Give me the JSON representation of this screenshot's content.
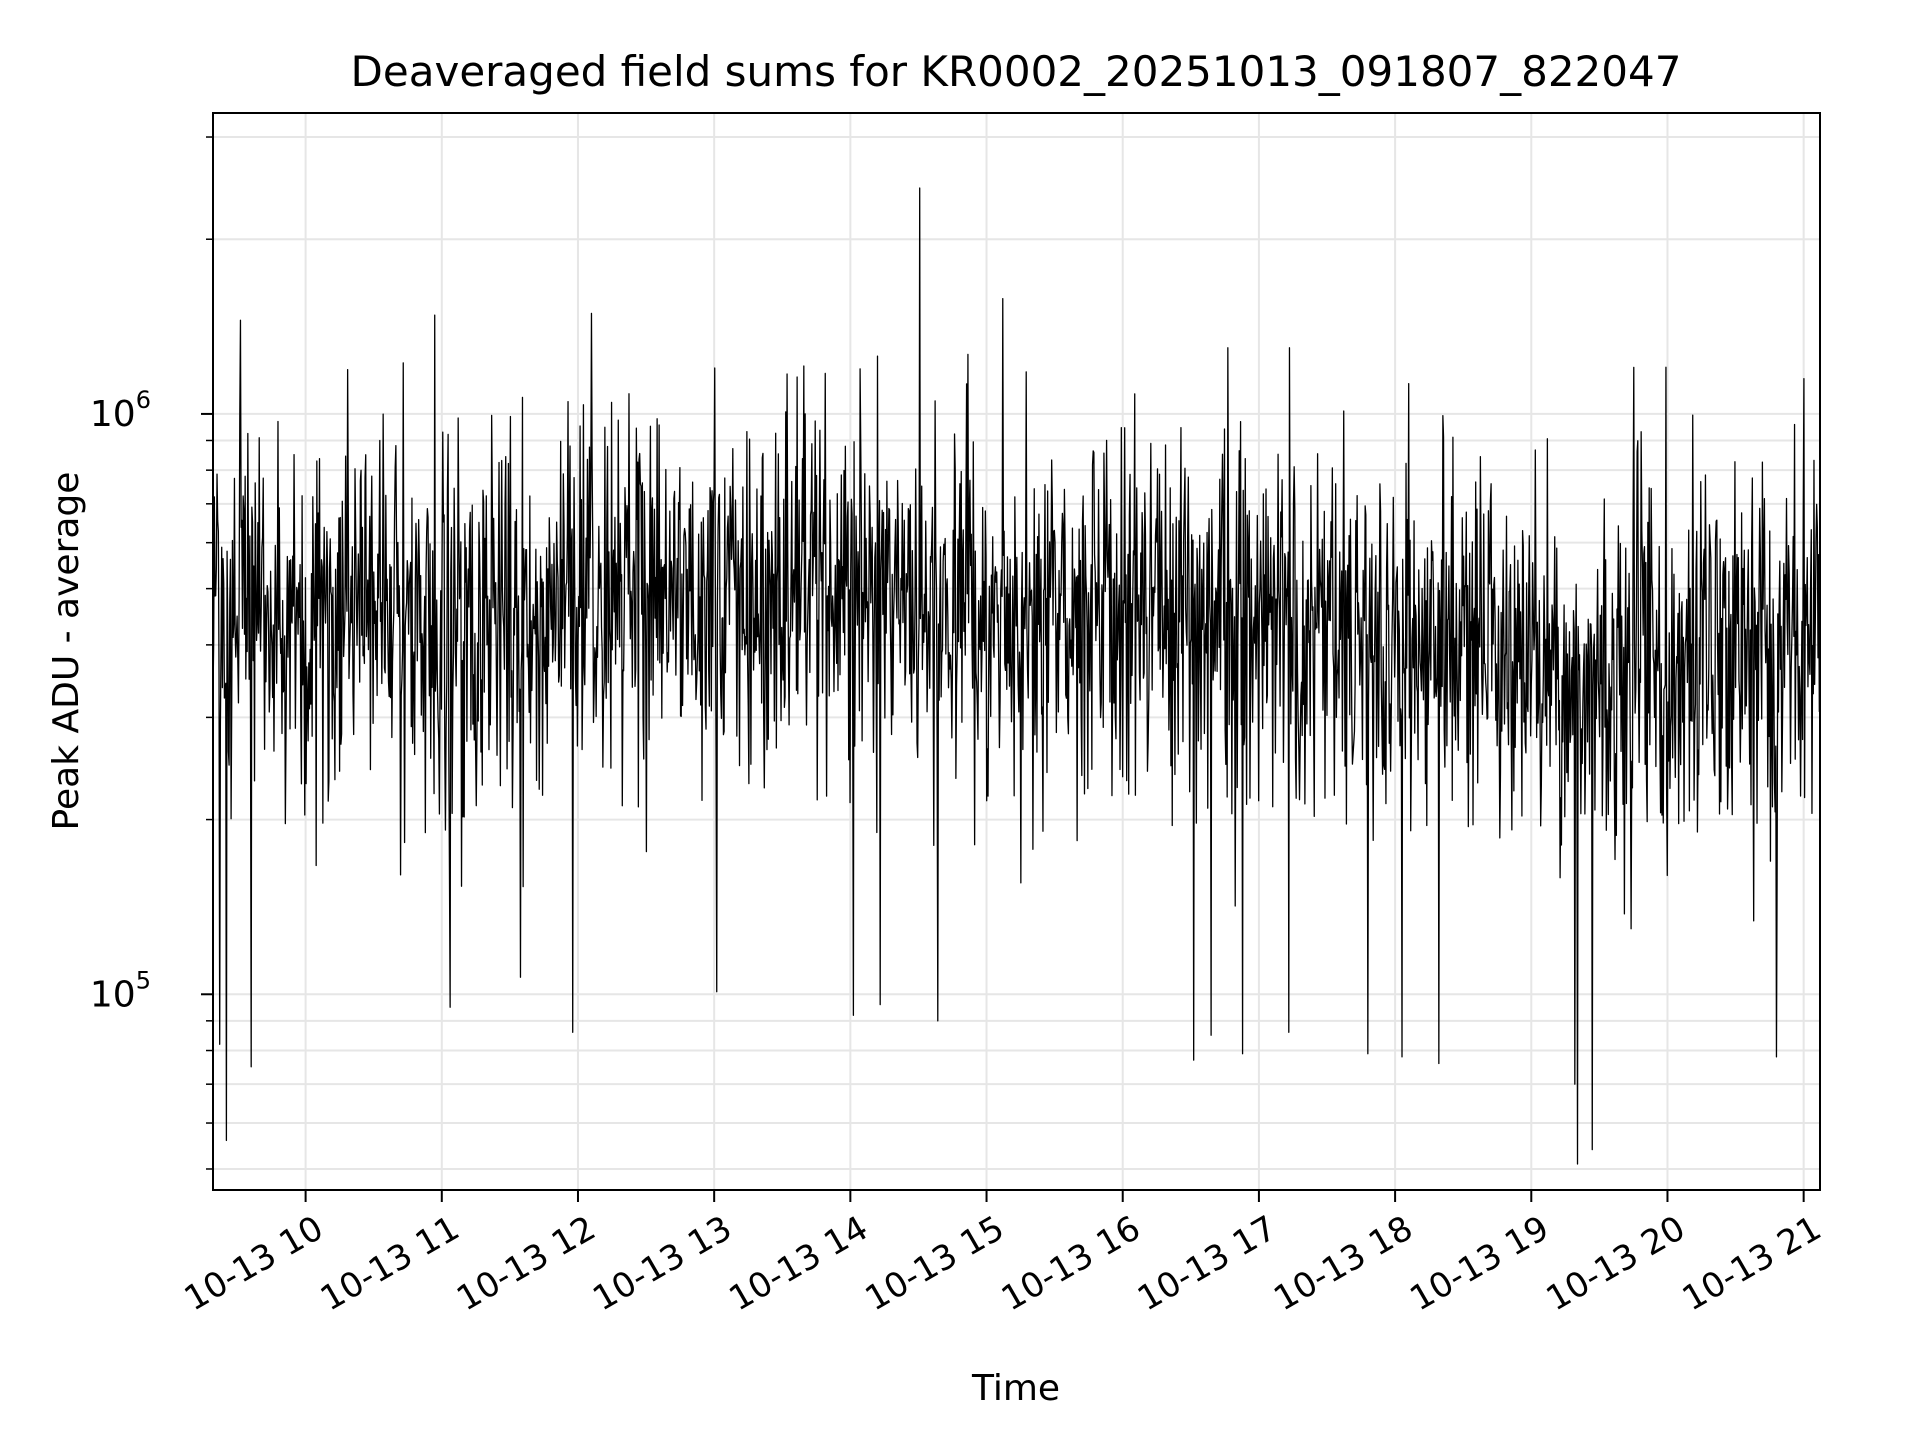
{
  "chart_data": {
    "type": "line",
    "title": "Deaveraged field sums for KR0002_20251013_091807_822047",
    "xlabel": "Time",
    "ylabel": "Peak ADU - average",
    "yscale": "log",
    "ylim": [
      46000,
      3300000
    ],
    "xlim_hours": [
      9.32,
      21.12
    ],
    "grid": true,
    "line_color": "#000000",
    "grid_color": "#e6e6e6",
    "x_ticks": [
      {
        "hour": 10,
        "label": "10-13 10"
      },
      {
        "hour": 11,
        "label": "10-13 11"
      },
      {
        "hour": 12,
        "label": "10-13 12"
      },
      {
        "hour": 13,
        "label": "10-13 13"
      },
      {
        "hour": 14,
        "label": "10-13 14"
      },
      {
        "hour": 15,
        "label": "10-13 15"
      },
      {
        "hour": 16,
        "label": "10-13 16"
      },
      {
        "hour": 17,
        "label": "10-13 17"
      },
      {
        "hour": 18,
        "label": "10-13 18"
      },
      {
        "hour": 19,
        "label": "10-13 19"
      },
      {
        "hour": 20,
        "label": "10-13 20"
      },
      {
        "hour": 21,
        "label": "10-13 21"
      }
    ],
    "y_major_ticks": [
      {
        "value": 100000,
        "base": "10",
        "exp": "5"
      },
      {
        "value": 1000000,
        "base": "10",
        "exp": "6"
      }
    ],
    "y_minor_ticks": [
      50000,
      60000,
      70000,
      80000,
      90000,
      200000,
      300000,
      400000,
      500000,
      600000,
      700000,
      800000,
      900000,
      2000000,
      3000000
    ],
    "series": [
      {
        "name": "deaveraged field sums",
        "baseline_profile": [
          {
            "hour": 9.32,
            "median": 450000
          },
          {
            "hour": 10.5,
            "median": 470000
          },
          {
            "hour": 11.2,
            "median": 420000
          },
          {
            "hour": 12.0,
            "median": 490000
          },
          {
            "hour": 13.5,
            "median": 500000
          },
          {
            "hour": 15.0,
            "median": 470000
          },
          {
            "hour": 16.5,
            "median": 450000
          },
          {
            "hour": 18.0,
            "median": 410000
          },
          {
            "hour": 19.5,
            "median": 360000
          },
          {
            "hour": 20.8,
            "median": 380000
          },
          {
            "hour": 21.12,
            "median": 480000
          }
        ],
        "notable_points": [
          {
            "hour": 9.42,
            "value": 56000
          },
          {
            "hour": 9.37,
            "value": 82000
          },
          {
            "hour": 9.6,
            "value": 75000
          },
          {
            "hour": 9.52,
            "value": 1450000
          },
          {
            "hour": 10.95,
            "value": 1480000
          },
          {
            "hour": 11.06,
            "value": 95000
          },
          {
            "hour": 11.58,
            "value": 107000
          },
          {
            "hour": 11.96,
            "value": 86000
          },
          {
            "hour": 12.1,
            "value": 1490000
          },
          {
            "hour": 13.02,
            "value": 101000
          },
          {
            "hour": 14.02,
            "value": 92000
          },
          {
            "hour": 14.22,
            "value": 96000
          },
          {
            "hour": 14.51,
            "value": 2450000
          },
          {
            "hour": 14.64,
            "value": 90000
          },
          {
            "hour": 15.12,
            "value": 1580000
          },
          {
            "hour": 16.52,
            "value": 77000
          },
          {
            "hour": 16.65,
            "value": 85000
          },
          {
            "hour": 16.88,
            "value": 79000
          },
          {
            "hour": 17.22,
            "value": 86000
          },
          {
            "hour": 17.8,
            "value": 79000
          },
          {
            "hour": 18.05,
            "value": 78000
          },
          {
            "hour": 18.32,
            "value": 76000
          },
          {
            "hour": 19.32,
            "value": 70000
          },
          {
            "hour": 19.34,
            "value": 51000
          },
          {
            "hour": 19.45,
            "value": 54000
          },
          {
            "hour": 20.8,
            "value": 78000
          },
          {
            "hour": 21.0,
            "value": 1150000
          }
        ],
        "n_points": 2400
      }
    ]
  }
}
